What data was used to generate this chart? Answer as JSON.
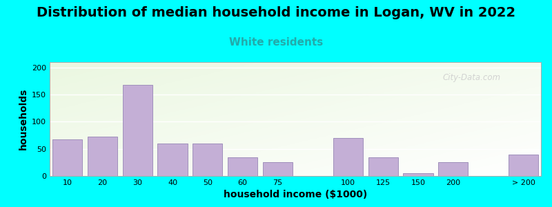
{
  "title": "Distribution of median household income in Logan, WV in 2022",
  "subtitle": "White residents",
  "xlabel": "household income ($1000)",
  "ylabel": "households",
  "background_color": "#00FFFF",
  "bar_color": "#c4afd6",
  "bar_edge_color": "#a090bb",
  "bar_labels": [
    "10",
    "20",
    "30",
    "40",
    "50",
    "60",
    "75",
    "",
    "100",
    "125",
    "150",
    "200",
    "",
    "> 200"
  ],
  "bar_vals": [
    67,
    73,
    168,
    60,
    60,
    35,
    25,
    0,
    70,
    35,
    5,
    26,
    0,
    40
  ],
  "ylim": [
    0,
    210
  ],
  "yticks": [
    0,
    50,
    100,
    150,
    200
  ],
  "title_fontsize": 14,
  "subtitle_fontsize": 11,
  "subtitle_color": "#22AAAA",
  "axis_label_fontsize": 10,
  "tick_fontsize": 8,
  "watermark": "City-Data.com"
}
